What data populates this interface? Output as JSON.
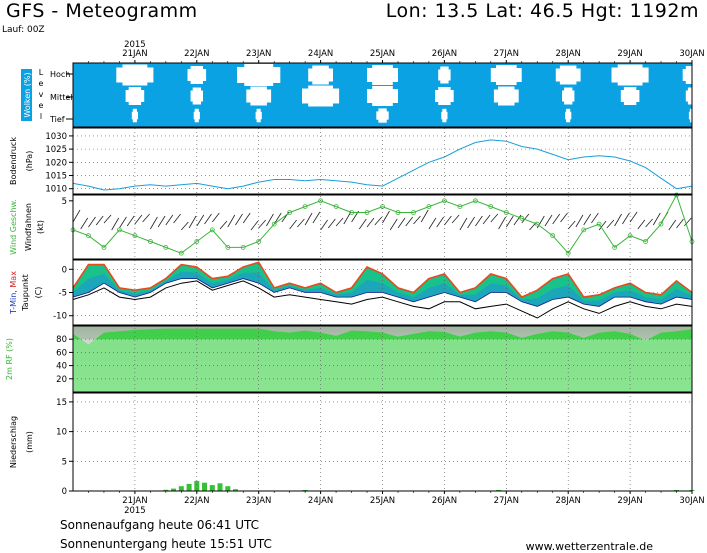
{
  "header": {
    "title": "GFS - Meteogramm",
    "location": "Lon: 13.5 Lat: 46.5 Hgt: 1192m",
    "run": "Lauf: 00Z"
  },
  "footer": {
    "sunrise": "Sonnenaufgang heute 06:41 UTC",
    "sunset": "Sonnenuntergang heute 15:51 UTC",
    "credit": "www.wetterzentrale.de"
  },
  "colors": {
    "cloud_sky": "#0aa2e3",
    "cloud_white": "#ffffff",
    "pressure_line": "#1a9fd8",
    "wind_line": "#39b639",
    "temp_fill": "#19c28a",
    "temp_top": "#e64b1e",
    "temp_blue": "#1e8fe0",
    "rh_fill": "#2fd13b",
    "precip_bar": "#34c234",
    "grid": "#555555"
  },
  "chart_data": [
    {
      "type": "heatmap",
      "panel": "clouds",
      "ylabel": "Wolken (%)",
      "level_title": "Level",
      "levels": [
        "Hoch",
        "Mittel",
        "Tief"
      ],
      "x": [
        "21JAN",
        "22JAN",
        "23JAN",
        "24JAN",
        "25JAN",
        "26JAN",
        "27JAN",
        "28JAN",
        "29JAN",
        "30JAN"
      ],
      "year": "2015",
      "rows": {
        "Hoch": [
          0.6,
          0.3,
          0.7,
          0.4,
          0.5,
          0.2,
          0.5,
          0.4,
          0.6,
          0.3
        ],
        "Mittel": [
          0.3,
          0.2,
          0.4,
          0.6,
          0.5,
          0.3,
          0.4,
          0.2,
          0.3,
          0.2
        ],
        "Tief": [
          0.1,
          0.1,
          0.1,
          0.0,
          0.2,
          0.1,
          0.0,
          0.1,
          0.0,
          0.1
        ]
      }
    },
    {
      "type": "line",
      "panel": "pressure",
      "ylabel": "Bodendruck",
      "unit": "(hPa)",
      "ylim": [
        1008,
        1033
      ],
      "yticks": [
        1010,
        1015,
        1020,
        1025,
        1030
      ],
      "x": [
        20.0,
        20.25,
        20.5,
        20.75,
        21.0,
        21.25,
        21.5,
        21.75,
        22.0,
        22.25,
        22.5,
        22.75,
        23.0,
        23.25,
        23.5,
        23.75,
        24.0,
        24.25,
        24.5,
        24.75,
        25.0,
        25.25,
        25.5,
        25.75,
        26.0,
        26.25,
        26.5,
        26.75,
        27.0,
        27.25,
        27.5,
        27.75,
        28.0,
        28.25,
        28.5,
        28.75,
        29.0,
        29.25,
        29.5,
        29.75,
        30.0
      ],
      "values": [
        1012.0,
        1011.0,
        1009.5,
        1010.0,
        1011.0,
        1011.5,
        1011.0,
        1011.5,
        1012.0,
        1011.0,
        1010.0,
        1011.0,
        1012.5,
        1013.5,
        1013.5,
        1013.0,
        1013.5,
        1013.0,
        1012.5,
        1011.5,
        1011.0,
        1014.0,
        1017.0,
        1020.0,
        1022.0,
        1025.0,
        1027.5,
        1028.5,
        1028.0,
        1026.0,
        1025.0,
        1023.0,
        1021.0,
        1022.0,
        1022.5,
        1022.0,
        1020.5,
        1018.0,
        1014.0,
        1010.0,
        1011.0
      ]
    },
    {
      "type": "line",
      "panel": "wind",
      "ylabel": "Wind Geschw.",
      "ylabel2": "Windfahnen",
      "unit": "(kt)",
      "ylim": [
        0,
        5.5
      ],
      "yticks": [
        5
      ],
      "x": [
        20.0,
        20.25,
        20.5,
        20.75,
        21.0,
        21.25,
        21.5,
        21.75,
        22.0,
        22.25,
        22.5,
        22.75,
        23.0,
        23.25,
        23.5,
        23.75,
        24.0,
        24.25,
        24.5,
        24.75,
        25.0,
        25.25,
        25.5,
        25.75,
        26.0,
        26.25,
        26.5,
        26.75,
        27.0,
        27.25,
        27.5,
        27.75,
        28.0,
        28.25,
        28.5,
        28.75,
        29.0,
        29.25,
        29.5,
        29.75,
        30.0
      ],
      "values": [
        2.5,
        2.0,
        1.0,
        2.5,
        2.0,
        1.5,
        1.0,
        0.5,
        1.5,
        2.5,
        1.0,
        1.0,
        1.5,
        3.0,
        4.0,
        4.5,
        5.0,
        4.5,
        4.0,
        4.0,
        4.5,
        4.0,
        4.0,
        4.5,
        5.0,
        4.5,
        5.0,
        4.5,
        4.0,
        3.5,
        3.0,
        2.0,
        0.5,
        2.5,
        3.0,
        1.0,
        2.0,
        1.5,
        3.0,
        5.5,
        1.5
      ]
    },
    {
      "type": "area",
      "panel": "temperature",
      "ylabel": "T-Min, Max",
      "ylabel2": "Taupunkt",
      "unit": "(C)",
      "ylim": [
        -12,
        2
      ],
      "yticks": [
        0,
        -5,
        -10
      ],
      "x": [
        20.0,
        20.25,
        20.5,
        20.75,
        21.0,
        21.25,
        21.5,
        21.75,
        22.0,
        22.25,
        22.5,
        22.75,
        23.0,
        23.25,
        23.5,
        23.75,
        24.0,
        24.25,
        24.5,
        24.75,
        25.0,
        25.25,
        25.5,
        25.75,
        26.0,
        26.25,
        26.5,
        26.75,
        27.0,
        27.25,
        27.5,
        27.75,
        28.0,
        28.25,
        28.5,
        28.75,
        29.0,
        29.25,
        29.5,
        29.75,
        30.0
      ],
      "series": [
        {
          "name": "T-Max",
          "values": [
            -4.0,
            1.0,
            1.0,
            -4.0,
            -4.5,
            -4.0,
            -2.0,
            1.0,
            0.5,
            -2.0,
            -1.5,
            0.5,
            1.5,
            -4.0,
            -3.0,
            -4.0,
            -3.0,
            -5.0,
            -4.0,
            0.5,
            -1.0,
            -4.0,
            -5.0,
            -2.0,
            -1.0,
            -5.0,
            -4.0,
            -1.0,
            -2.0,
            -6.0,
            -4.5,
            -2.0,
            -1.0,
            -6.0,
            -5.5,
            -4.0,
            -3.0,
            -5.0,
            -5.5,
            -2.5,
            -5.0
          ]
        },
        {
          "name": "T-Min",
          "values": [
            -6.0,
            -5.0,
            -3.0,
            -5.0,
            -6.0,
            -5.0,
            -3.0,
            -2.0,
            -2.0,
            -4.0,
            -3.0,
            -2.0,
            -3.0,
            -5.0,
            -4.0,
            -5.0,
            -5.0,
            -6.0,
            -6.0,
            -5.0,
            -5.0,
            -6.0,
            -7.0,
            -6.0,
            -5.0,
            -6.0,
            -7.0,
            -5.0,
            -5.0,
            -7.0,
            -8.0,
            -6.5,
            -6.0,
            -7.5,
            -8.0,
            -6.0,
            -6.0,
            -7.0,
            -7.5,
            -6.0,
            -6.5
          ]
        },
        {
          "name": "Taupunkt",
          "values": [
            -6.5,
            -5.5,
            -4.0,
            -6.0,
            -6.5,
            -6.0,
            -4.0,
            -3.0,
            -2.5,
            -4.5,
            -3.5,
            -2.5,
            -4.0,
            -6.0,
            -5.5,
            -6.0,
            -6.5,
            -7.0,
            -7.5,
            -6.5,
            -6.0,
            -7.0,
            -8.0,
            -8.5,
            -7.0,
            -7.0,
            -8.5,
            -8.0,
            -7.5,
            -9.0,
            -10.5,
            -8.5,
            -7.0,
            -8.5,
            -9.5,
            -8.0,
            -7.0,
            -8.0,
            -8.5,
            -7.5,
            -8.0
          ]
        }
      ]
    },
    {
      "type": "area",
      "panel": "humidity",
      "ylabel": "2m RF",
      "unit": "(%)",
      "ylim": [
        0,
        100
      ],
      "yticks": [
        20,
        40,
        60,
        80
      ],
      "x": [
        20.0,
        20.25,
        20.5,
        20.75,
        21.0,
        21.25,
        21.5,
        21.75,
        22.0,
        22.25,
        22.5,
        22.75,
        23.0,
        23.25,
        23.5,
        23.75,
        24.0,
        24.25,
        24.5,
        24.75,
        25.0,
        25.25,
        25.5,
        25.75,
        26.0,
        26.25,
        26.5,
        26.75,
        27.0,
        27.25,
        27.5,
        27.75,
        28.0,
        28.25,
        28.5,
        28.75,
        29.0,
        29.25,
        29.5,
        29.75,
        30.0
      ],
      "values": [
        88,
        72,
        90,
        92,
        94,
        95,
        96,
        96,
        96,
        96,
        96,
        96,
        96,
        92,
        90,
        93,
        90,
        85,
        93,
        92,
        90,
        84,
        88,
        92,
        91,
        84,
        90,
        92,
        90,
        82,
        88,
        92,
        90,
        82,
        90,
        92,
        88,
        78,
        90,
        92,
        95
      ]
    },
    {
      "type": "bar",
      "panel": "precipitation",
      "ylabel": "Niederschlag",
      "unit": "(mm)",
      "ylim": [
        0,
        16.5
      ],
      "yticks": [
        0,
        5,
        10,
        15
      ],
      "x": [
        21.5,
        21.625,
        21.75,
        21.875,
        22.0,
        22.125,
        22.25,
        22.375,
        22.5,
        22.625,
        23.75,
        26.875,
        29.75,
        30.0
      ],
      "values": [
        0.2,
        0.4,
        0.8,
        1.2,
        1.7,
        1.4,
        1.0,
        1.3,
        0.8,
        0.3,
        0.05,
        0.05,
        0.1,
        0.05
      ]
    }
  ]
}
